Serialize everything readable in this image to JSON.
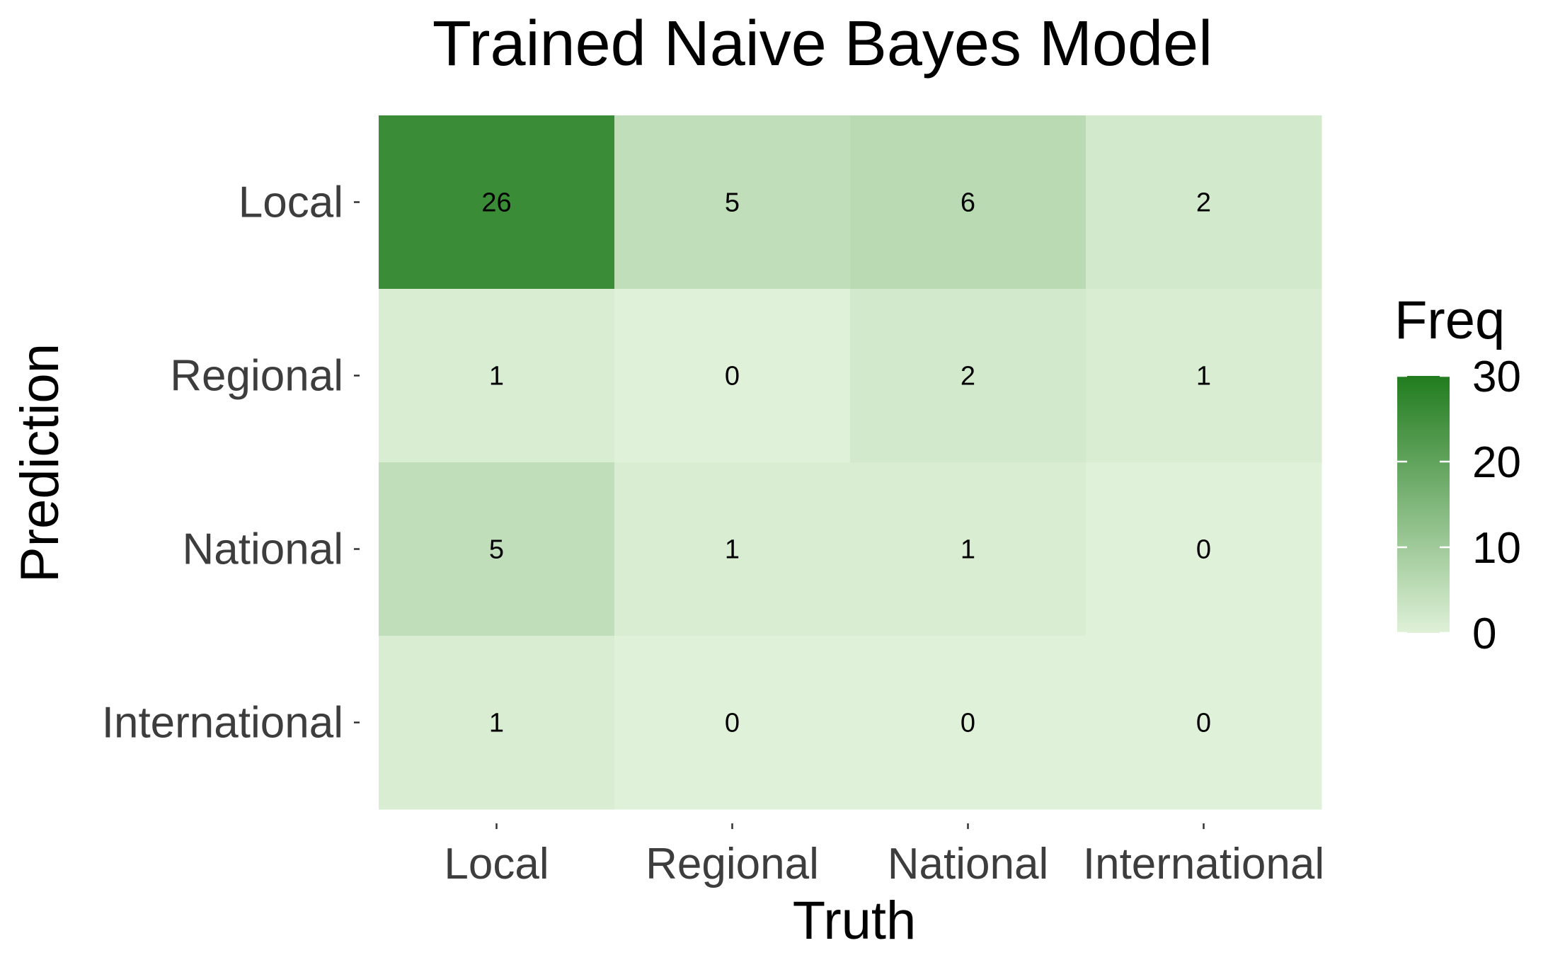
{
  "chart_data": {
    "type": "heatmap",
    "title": "Trained Naive Bayes Model",
    "xlabel": "Truth",
    "ylabel": "Prediction",
    "x_categories": [
      "Local",
      "Regional",
      "National",
      "International"
    ],
    "y_categories": [
      "Local",
      "Regional",
      "National",
      "International"
    ],
    "matrix": [
      [
        26,
        5,
        6,
        2
      ],
      [
        1,
        0,
        2,
        1
      ],
      [
        5,
        1,
        1,
        0
      ],
      [
        1,
        0,
        0,
        0
      ]
    ],
    "legend": {
      "title": "Freq",
      "ticks": [
        0,
        10,
        20,
        30
      ],
      "range": [
        0,
        30
      ],
      "placement": "right"
    },
    "colors": {
      "low": "#dff1d8",
      "high": "#217c1e"
    }
  }
}
